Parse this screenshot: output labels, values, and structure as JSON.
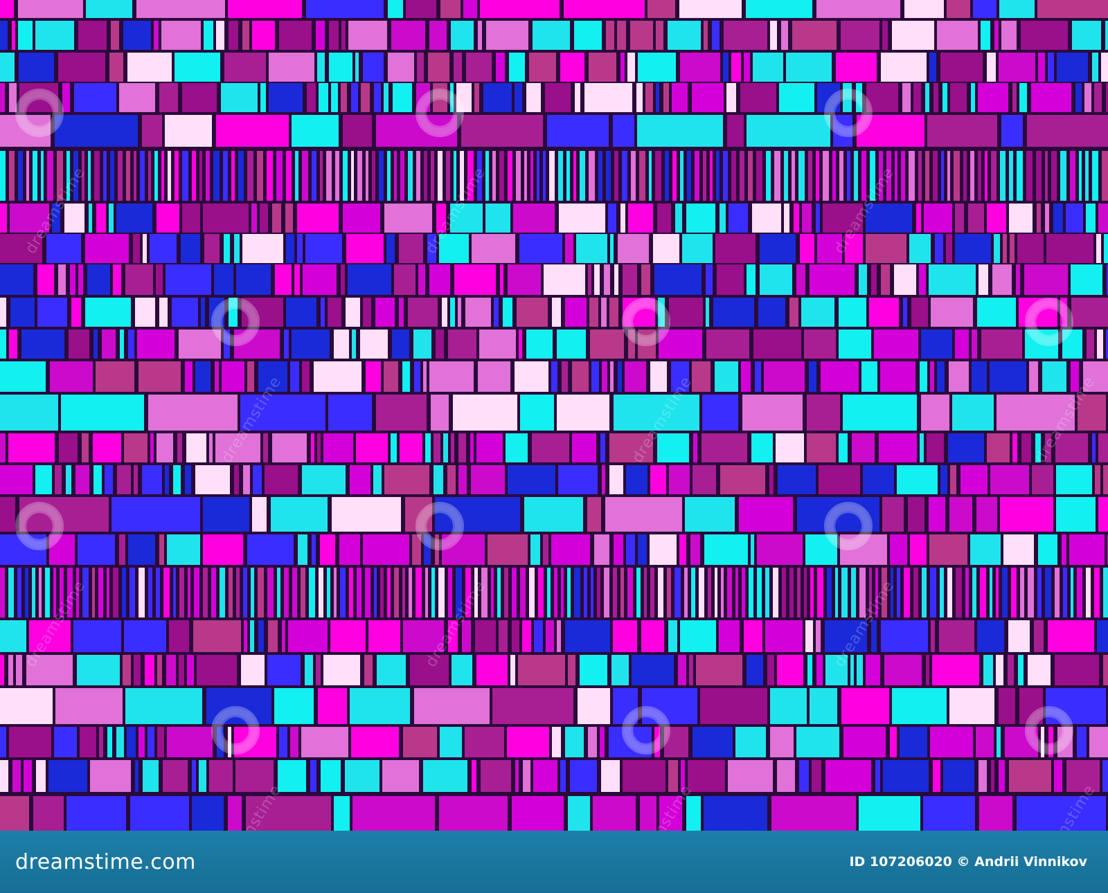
{
  "image": {
    "description_colors": [
      "#ff00e0",
      "#e072d8",
      "#cc0acc",
      "#a81f94",
      "#9a0f8a",
      "#3a2dff",
      "#1a2ad8",
      "#12f0f0",
      "#20e4ec",
      "#ffe0f8",
      "#b8398a",
      "#d400d8"
    ],
    "background_color": "#2a0a3a"
  },
  "watermark": {
    "text": "dreamstime",
    "icon": "spiral-icon"
  },
  "footer": {
    "logo_text": "dreamstime.com",
    "credit_text": "ID 107206020 © Andrii Vinnikov",
    "bar_color": "#1a78a0"
  }
}
